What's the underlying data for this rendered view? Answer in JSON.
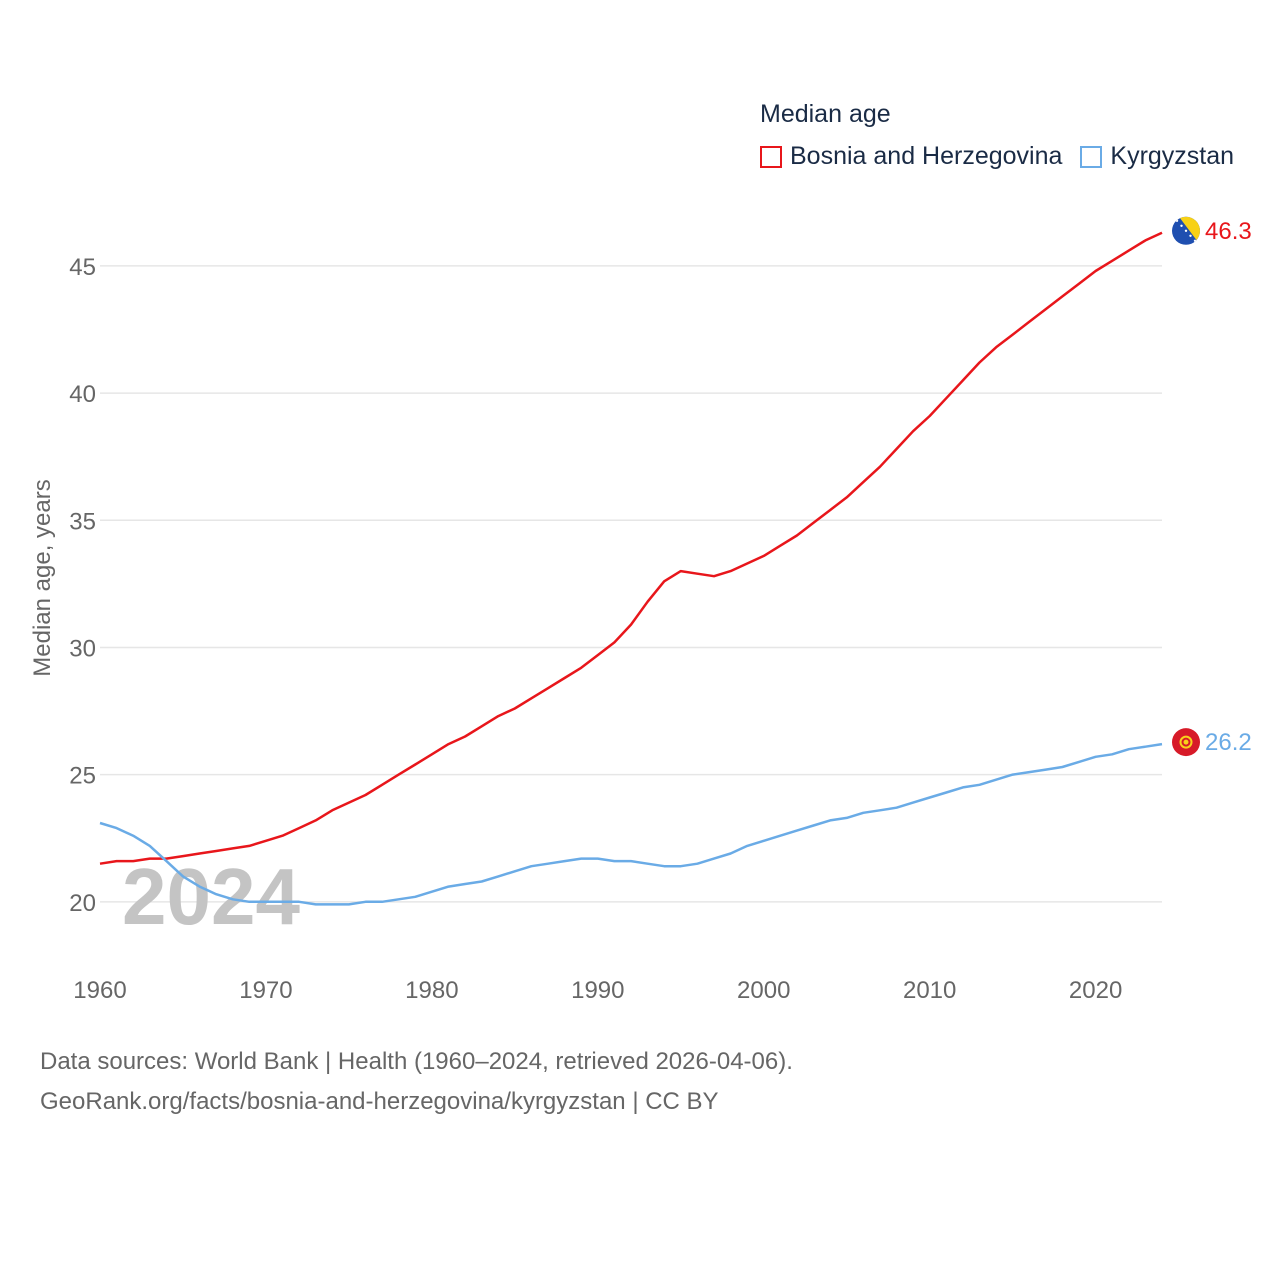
{
  "legend": {
    "title": "Median age"
  },
  "chart_data": {
    "type": "line",
    "title": "Median age",
    "xlabel": "",
    "ylabel": "Median age, years",
    "xlim": [
      1960,
      2024
    ],
    "ylim": [
      18.5,
      47
    ],
    "xticks": [
      1960,
      1970,
      1980,
      1990,
      2000,
      2010,
      2020
    ],
    "yticks": [
      20,
      25,
      30,
      35,
      40,
      45
    ],
    "grid": true,
    "legend_position": "top-right",
    "year_label": "2024",
    "series": [
      {
        "name": "Bosnia and Herzegovina",
        "color": "#e8161b",
        "end_label": "46.3",
        "flag_icon": "bosnia-flag-icon",
        "x": [
          1960,
          1961,
          1962,
          1963,
          1964,
          1965,
          1966,
          1967,
          1968,
          1969,
          1970,
          1971,
          1972,
          1973,
          1974,
          1975,
          1976,
          1977,
          1978,
          1979,
          1980,
          1981,
          1982,
          1983,
          1984,
          1985,
          1986,
          1987,
          1988,
          1989,
          1990,
          1991,
          1992,
          1993,
          1994,
          1995,
          1996,
          1997,
          1998,
          1999,
          2000,
          2001,
          2002,
          2003,
          2004,
          2005,
          2006,
          2007,
          2008,
          2009,
          2010,
          2011,
          2012,
          2013,
          2014,
          2015,
          2016,
          2017,
          2018,
          2019,
          2020,
          2021,
          2022,
          2023,
          2024
        ],
        "values": [
          21.5,
          21.6,
          21.6,
          21.7,
          21.7,
          21.8,
          21.9,
          22.0,
          22.1,
          22.2,
          22.4,
          22.6,
          22.9,
          23.2,
          23.6,
          23.9,
          24.2,
          24.6,
          25.0,
          25.4,
          25.8,
          26.2,
          26.5,
          26.9,
          27.3,
          27.6,
          28.0,
          28.4,
          28.8,
          29.2,
          29.7,
          30.2,
          30.9,
          31.8,
          32.6,
          33.0,
          32.9,
          32.8,
          33.0,
          33.3,
          33.6,
          34.0,
          34.4,
          34.9,
          35.4,
          35.9,
          36.5,
          37.1,
          37.8,
          38.5,
          39.1,
          39.8,
          40.5,
          41.2,
          41.8,
          42.3,
          42.8,
          43.3,
          43.8,
          44.3,
          44.8,
          45.2,
          45.6,
          46.0,
          46.3
        ]
      },
      {
        "name": "Kyrgyzstan",
        "color": "#6aabe6",
        "end_label": "26.2",
        "flag_icon": "kyrgyzstan-flag-icon",
        "x": [
          1960,
          1961,
          1962,
          1963,
          1964,
          1965,
          1966,
          1967,
          1968,
          1969,
          1970,
          1971,
          1972,
          1973,
          1974,
          1975,
          1976,
          1977,
          1978,
          1979,
          1980,
          1981,
          1982,
          1983,
          1984,
          1985,
          1986,
          1987,
          1988,
          1989,
          1990,
          1991,
          1992,
          1993,
          1994,
          1995,
          1996,
          1997,
          1998,
          1999,
          2000,
          2001,
          2002,
          2003,
          2004,
          2005,
          2006,
          2007,
          2008,
          2009,
          2010,
          2011,
          2012,
          2013,
          2014,
          2015,
          2016,
          2017,
          2018,
          2019,
          2020,
          2021,
          2022,
          2023,
          2024
        ],
        "values": [
          23.1,
          22.9,
          22.6,
          22.2,
          21.6,
          21.0,
          20.6,
          20.3,
          20.1,
          20.0,
          20.0,
          20.0,
          20.0,
          19.9,
          19.9,
          19.9,
          20.0,
          20.0,
          20.1,
          20.2,
          20.4,
          20.6,
          20.7,
          20.8,
          21.0,
          21.2,
          21.4,
          21.5,
          21.6,
          21.7,
          21.7,
          21.6,
          21.6,
          21.5,
          21.4,
          21.4,
          21.5,
          21.7,
          21.9,
          22.2,
          22.4,
          22.6,
          22.8,
          23.0,
          23.2,
          23.3,
          23.5,
          23.6,
          23.7,
          23.9,
          24.1,
          24.3,
          24.5,
          24.6,
          24.8,
          25.0,
          25.1,
          25.2,
          25.3,
          25.5,
          25.7,
          25.8,
          26.0,
          26.1,
          26.2
        ]
      }
    ]
  },
  "sources": {
    "line1": "Data sources: World Bank | Health (1960–2024, retrieved 2026-04-06).",
    "line2": "GeoRank.org/facts/bosnia-and-herzegovina/kyrgyzstan | CC BY"
  }
}
